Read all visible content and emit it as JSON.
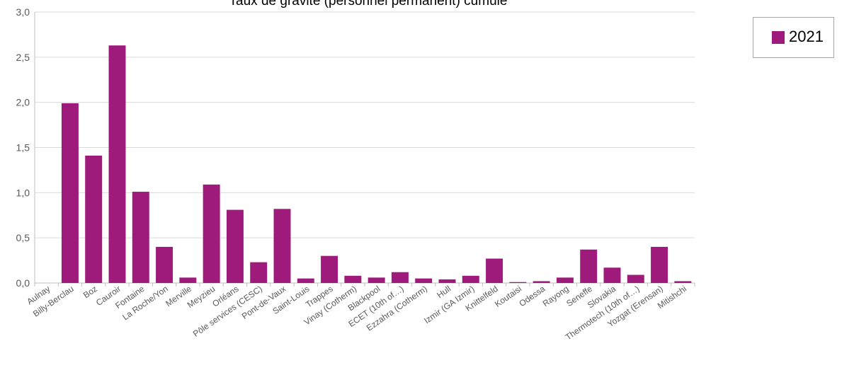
{
  "chart_data": {
    "type": "bar",
    "title": "Taux de gravité (personnel permanent) cumulé",
    "categories": [
      "Aulnay",
      "Billy-Berclau",
      "Boz",
      "Cauroir",
      "Fontaine",
      "La Roche/Yon",
      "Merville",
      "Meyzieu",
      "Orléans",
      "Pôle services (CESC)",
      "Pont-de-Vaux",
      "Saint-Louis",
      "Trappes",
      "Vinay (Cotherm)",
      "Blackpool",
      "ECET (10th of…)",
      "Ezzahra (Cotherm)",
      "Hull",
      "Izmir (GA Izmir)",
      "Knittelfeld",
      "Koutaisi",
      "Odessa",
      "Rayong",
      "Seneffe",
      "Slovakia",
      "Thermotech (10th of…)",
      "Yozgat (Erensan)",
      "Mitishchi"
    ],
    "series": [
      {
        "name": "2021",
        "values": [
          0,
          1.99,
          1.41,
          2.63,
          1.01,
          0.4,
          0.06,
          1.09,
          0.81,
          0.23,
          0.82,
          0.05,
          0.3,
          0.08,
          0.06,
          0.12,
          0.05,
          0.04,
          0.08,
          0.27,
          0.01,
          0.02,
          0.06,
          0.37,
          0.17,
          0.09,
          0.4,
          0.02
        ]
      }
    ],
    "ylim": [
      0,
      3.0
    ],
    "yticks": [
      "0,0",
      "0,5",
      "1,0",
      "1,5",
      "2,0",
      "2,5",
      "3,0"
    ],
    "ytick_values": [
      0,
      0.5,
      1.0,
      1.5,
      2.0,
      2.5,
      3.0
    ],
    "grid": true,
    "legend": "right",
    "colors": {
      "bar": "#9e1a7b",
      "grid": "#d9d9d9",
      "axis": "#bfbfbf"
    }
  }
}
